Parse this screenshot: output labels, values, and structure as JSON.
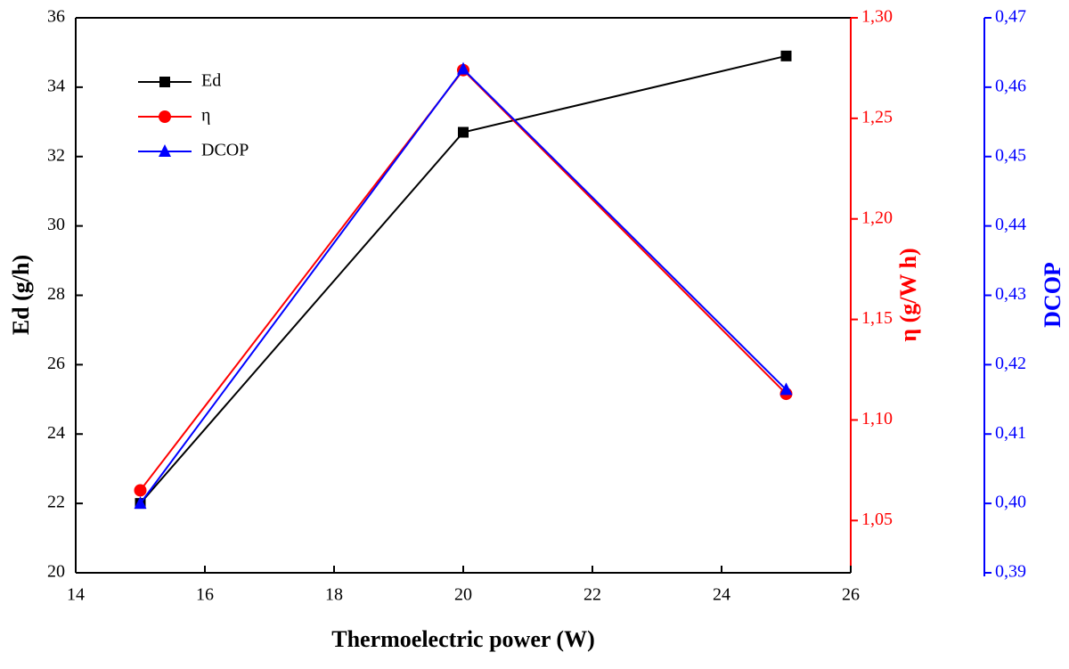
{
  "chart_data": {
    "type": "line",
    "xlabel": "Thermoelectric power (W)",
    "ylabel": "Ed (g/h)",
    "y2label": "η (g/W h)",
    "y3label": "DCOP",
    "x": [
      15,
      20,
      25
    ],
    "xlim": [
      14,
      26
    ],
    "xticks": [
      14,
      16,
      18,
      20,
      22,
      24,
      26
    ],
    "ylim": [
      20,
      36
    ],
    "yticks": [
      20,
      22,
      24,
      26,
      28,
      30,
      32,
      34,
      36
    ],
    "y2lim": [
      1.024,
      1.3
    ],
    "y2ticks": [
      {
        "value": 1.05,
        "label": "1,05"
      },
      {
        "value": 1.1,
        "label": "1,10"
      },
      {
        "value": 1.15,
        "label": "1,15"
      },
      {
        "value": 1.2,
        "label": "1,20"
      },
      {
        "value": 1.25,
        "label": "1,25"
      },
      {
        "value": 1.3,
        "label": "1,30"
      }
    ],
    "y3lim": [
      0.39,
      0.47
    ],
    "y3ticks": [
      {
        "value": 0.39,
        "label": "0,39"
      },
      {
        "value": 0.4,
        "label": "0,40"
      },
      {
        "value": 0.41,
        "label": "0,41"
      },
      {
        "value": 0.42,
        "label": "0,42"
      },
      {
        "value": 0.43,
        "label": "0,43"
      },
      {
        "value": 0.44,
        "label": "0,44"
      },
      {
        "value": 0.45,
        "label": "0,45"
      },
      {
        "value": 0.46,
        "label": "0,46"
      },
      {
        "value": 0.47,
        "label": "0,47"
      }
    ],
    "y2color": "#ff0000",
    "y3color": "#0000ff",
    "legend": "upper left",
    "series": [
      {
        "name": "Ed",
        "color": "#000000",
        "marker": "square",
        "values": [
          22.0,
          32.7,
          34.9
        ]
      },
      {
        "name": "η",
        "color": "#ff0000",
        "marker": "circle",
        "axis": "y2",
        "values": [
          1.065,
          1.274,
          1.113
        ]
      },
      {
        "name": "DCOP",
        "color": "#0000ff",
        "marker": "triangle",
        "axis": "y3",
        "values": [
          0.4,
          0.4626,
          0.4164
        ]
      }
    ]
  }
}
